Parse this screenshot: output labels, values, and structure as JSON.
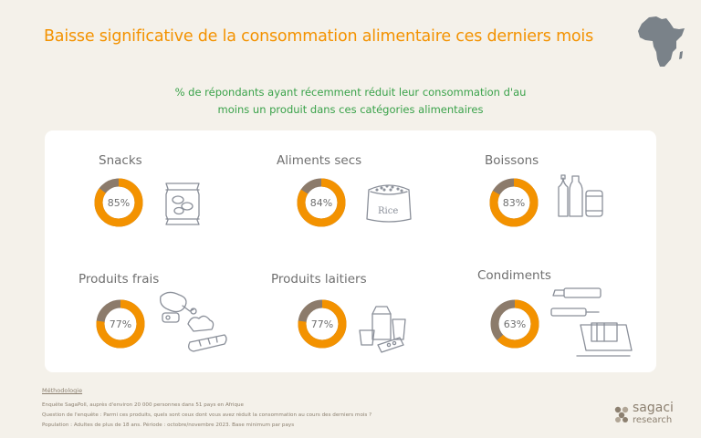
{
  "header": {
    "title": "Baisse significative de la consommation alimentaire ces derniers mois",
    "subtitle_line1": "% de répondants ayant récemment réduit leur consommation d'au",
    "subtitle_line2": "moins un produit dans ces catégories alimentaires"
  },
  "colors": {
    "accent": "#f39200",
    "remainder": "#8c7b6b",
    "subtitle": "#3aa24a",
    "text": "#6f6f6f"
  },
  "chart_data": {
    "type": "donut",
    "categories": [
      "Snacks",
      "Aliments secs",
      "Boissons",
      "Produits frais",
      "Produits laitiers",
      "Condiments"
    ],
    "values": [
      85,
      84,
      83,
      77,
      77,
      63
    ],
    "labels": [
      "85%",
      "84%",
      "83%",
      "77%",
      "77%",
      "63%"
    ],
    "unit": "%",
    "icons": [
      "chips-bag-icon",
      "rice-sack-icon",
      "bottles-icon",
      "fresh-food-icon",
      "dairy-icon",
      "condiments-icon"
    ],
    "icon_texts": {
      "rice": "Rice"
    }
  },
  "methodology": {
    "title": "Méthodologie",
    "line1": "Enquête SagaPoll, auprès d'environ 20 000 personnes dans 51 pays en Afrique",
    "line2": "Question de l'enquête : Parmi ces produits, quels sont ceux dont vous avez réduit la consommation au cours des derniers mois ?",
    "line3": "Population : Adultes de plus de 18 ans. Période : octobre/novembre 2023. Base minimum par pays"
  },
  "logo": {
    "word1": "sagaci",
    "word2": "research"
  }
}
